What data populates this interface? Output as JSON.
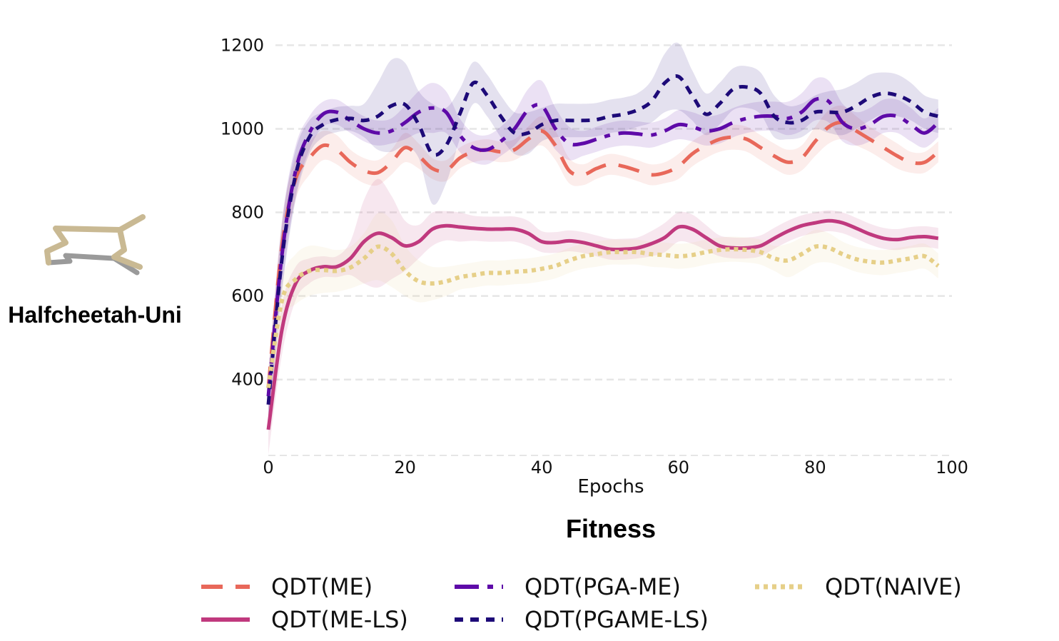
{
  "chart_data": {
    "type": "line",
    "title": "Fitness",
    "environment_label": "Halfcheetah-Uni",
    "xlabel": "Epochs",
    "ylabel": "",
    "xlim": [
      0,
      100
    ],
    "ylim": [
      215,
      1240
    ],
    "xticks": [
      0,
      20,
      40,
      60,
      80,
      100
    ],
    "yticks": [
      400,
      600,
      800,
      1000,
      1200
    ],
    "grid": true,
    "legend_position": "bottom",
    "x": [
      0,
      2,
      4,
      6,
      8,
      10,
      12,
      14,
      16,
      18,
      20,
      22,
      24,
      26,
      28,
      30,
      32,
      34,
      36,
      38,
      40,
      42,
      44,
      46,
      48,
      50,
      52,
      54,
      56,
      58,
      60,
      62,
      64,
      66,
      68,
      70,
      72,
      74,
      76,
      78,
      80,
      82,
      84,
      86,
      88,
      90,
      92,
      94,
      96,
      98
    ],
    "series": [
      {
        "name": "QDT(ME)",
        "color": "#e8685a",
        "dash": "dashed",
        "values": [
          380,
          720,
          880,
          930,
          960,
          950,
          920,
          900,
          895,
          920,
          955,
          935,
          905,
          900,
          930,
          945,
          950,
          945,
          950,
          975,
          995,
          960,
          900,
          890,
          905,
          915,
          910,
          900,
          890,
          895,
          910,
          940,
          960,
          975,
          980,
          975,
          955,
          935,
          920,
          930,
          970,
          1005,
          1015,
          995,
          975,
          955,
          935,
          920,
          920,
          945
        ],
        "spread": [
          40,
          60,
          50,
          40,
          35,
          35,
          30,
          30,
          30,
          30,
          35,
          30,
          25,
          25,
          25,
          25,
          25,
          25,
          25,
          30,
          35,
          35,
          30,
          25,
          25,
          25,
          25,
          25,
          25,
          25,
          30,
          30,
          30,
          30,
          30,
          30,
          30,
          30,
          30,
          30,
          35,
          40,
          40,
          35,
          30,
          30,
          30,
          25,
          25,
          25
        ]
      },
      {
        "name": "QDT(ME-LS)",
        "color": "#c0397e",
        "dash": "solid",
        "values": [
          280,
          520,
          630,
          660,
          670,
          670,
          690,
          730,
          750,
          740,
          720,
          730,
          760,
          768,
          765,
          762,
          760,
          760,
          760,
          750,
          730,
          728,
          732,
          728,
          720,
          712,
          712,
          715,
          725,
          740,
          765,
          760,
          740,
          720,
          715,
          715,
          720,
          738,
          755,
          768,
          775,
          780,
          775,
          762,
          748,
          738,
          735,
          740,
          742,
          738
        ],
        "spread": [
          60,
          60,
          40,
          30,
          25,
          25,
          40,
          100,
          130,
          100,
          60,
          40,
          40,
          35,
          35,
          30,
          30,
          30,
          30,
          30,
          25,
          25,
          25,
          25,
          25,
          25,
          25,
          25,
          30,
          35,
          35,
          35,
          30,
          25,
          25,
          25,
          25,
          25,
          25,
          25,
          25,
          25,
          25,
          25,
          25,
          25,
          25,
          25,
          25,
          25
        ]
      },
      {
        "name": "QDT(PGA-ME)",
        "color": "#5e0aa8",
        "dash": "dashdot",
        "values": [
          360,
          700,
          900,
          990,
          1035,
          1040,
          1020,
          1000,
          990,
          995,
          1015,
          1040,
          1050,
          1040,
          985,
          955,
          950,
          970,
          1000,
          1045,
          1055,
          1000,
          965,
          965,
          975,
          985,
          990,
          988,
          985,
          995,
          1010,
          1005,
          995,
          1000,
          1015,
          1025,
          1030,
          1030,
          1025,
          1040,
          1070,
          1065,
          1015,
          1000,
          1010,
          1030,
          1030,
          1010,
          990,
          1015
        ],
        "spread": [
          60,
          80,
          60,
          40,
          30,
          30,
          30,
          30,
          30,
          30,
          40,
          50,
          60,
          50,
          40,
          35,
          35,
          35,
          40,
          50,
          60,
          50,
          40,
          30,
          30,
          30,
          30,
          30,
          30,
          30,
          35,
          35,
          35,
          35,
          35,
          35,
          35,
          35,
          40,
          45,
          50,
          50,
          45,
          40,
          40,
          40,
          40,
          40,
          35,
          35
        ]
      },
      {
        "name": "QDT(PGAME-LS)",
        "color": "#1d0a78",
        "dash": "dotted-dense",
        "values": [
          340,
          690,
          890,
          980,
          1010,
          1022,
          1025,
          1020,
          1030,
          1055,
          1058,
          1010,
          940,
          960,
          1035,
          1110,
          1080,
          1030,
          990,
          990,
          1010,
          1020,
          1020,
          1020,
          1022,
          1030,
          1035,
          1045,
          1065,
          1110,
          1125,
          1080,
          1035,
          1060,
          1095,
          1100,
          1085,
          1030,
          1015,
          1020,
          1040,
          1040,
          1040,
          1055,
          1075,
          1085,
          1080,
          1065,
          1040,
          1030
        ],
        "spread": [
          60,
          80,
          60,
          40,
          30,
          30,
          30,
          40,
          80,
          110,
          100,
          80,
          120,
          90,
          60,
          50,
          50,
          50,
          50,
          50,
          40,
          40,
          40,
          40,
          40,
          40,
          40,
          40,
          50,
          70,
          80,
          60,
          50,
          50,
          50,
          50,
          50,
          50,
          40,
          40,
          40,
          50,
          55,
          55,
          55,
          50,
          50,
          45,
          40,
          40
        ]
      },
      {
        "name": "QDT(NAIVE)",
        "color": "#e6cf88",
        "dash": "dotted",
        "values": [
          380,
          590,
          640,
          660,
          662,
          660,
          668,
          690,
          718,
          702,
          660,
          635,
          630,
          635,
          645,
          650,
          655,
          655,
          658,
          660,
          665,
          672,
          685,
          695,
          700,
          705,
          705,
          705,
          700,
          698,
          695,
          698,
          705,
          710,
          712,
          710,
          705,
          690,
          685,
          700,
          718,
          715,
          700,
          688,
          682,
          680,
          685,
          690,
          695,
          672
        ],
        "spread": [
          40,
          50,
          60,
          60,
          55,
          50,
          50,
          60,
          80,
          80,
          60,
          50,
          40,
          35,
          30,
          30,
          30,
          30,
          30,
          30,
          30,
          30,
          30,
          30,
          30,
          30,
          30,
          30,
          30,
          30,
          30,
          30,
          30,
          30,
          30,
          30,
          30,
          30,
          40,
          40,
          40,
          35,
          30,
          30,
          30,
          30,
          30,
          30,
          30,
          30
        ]
      }
    ]
  }
}
